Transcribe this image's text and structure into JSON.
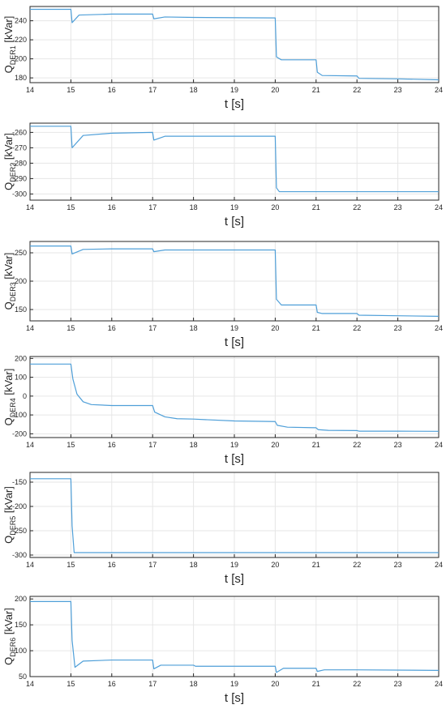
{
  "chart_data": [
    {
      "type": "line",
      "ylabel_main": "Q",
      "ylabel_sub": "DER1",
      "ylabel_unit": " [kVar]",
      "xlabel": "t [s]",
      "xlim": [
        14,
        24
      ],
      "ylim": [
        175,
        255
      ],
      "xticks": [
        14,
        15,
        16,
        17,
        18,
        19,
        20,
        21,
        22,
        23,
        24
      ],
      "yticks": [
        180,
        200,
        220,
        240
      ],
      "grid": true,
      "series": [
        {
          "color": "#4f9fd8",
          "x": [
            14,
            15,
            15.03,
            15.2,
            16,
            17,
            17.03,
            17.3,
            18,
            20,
            20.03,
            20.15,
            21,
            21.03,
            21.15,
            22,
            22.05,
            23,
            24
          ],
          "y": [
            252,
            252,
            238,
            246,
            247,
            247,
            242,
            244,
            243.5,
            243,
            202,
            199,
            199,
            186,
            182.5,
            182,
            179.5,
            179,
            178
          ]
        }
      ]
    },
    {
      "type": "line",
      "ylabel_main": "Q",
      "ylabel_sub": "DER2",
      "ylabel_unit": " [kVar]",
      "xlabel": "t [s]",
      "xlim": [
        14,
        24
      ],
      "ylim": [
        -304,
        -254
      ],
      "xticks": [
        14,
        15,
        16,
        17,
        18,
        19,
        20,
        21,
        22,
        23,
        24
      ],
      "yticks": [
        -260,
        -270,
        -280,
        -290,
        -300
      ],
      "grid": true,
      "series": [
        {
          "color": "#4f9fd8",
          "x": [
            14,
            15,
            15.03,
            15.3,
            16,
            17,
            17.03,
            17.3,
            18,
            20,
            20.03,
            20.1,
            21,
            24
          ],
          "y": [
            -256,
            -256,
            -270,
            -262,
            -260.5,
            -260,
            -265,
            -262.5,
            -262.5,
            -262.5,
            -296,
            -298.5,
            -298.5,
            -298.5
          ]
        }
      ]
    },
    {
      "type": "line",
      "ylabel_main": "Q",
      "ylabel_sub": "DER3",
      "ylabel_unit": " [kVar]",
      "xlabel": "t [s]",
      "xlim": [
        14,
        24
      ],
      "ylim": [
        130,
        270
      ],
      "xticks": [
        14,
        15,
        16,
        17,
        18,
        19,
        20,
        21,
        22,
        23,
        24
      ],
      "yticks": [
        150,
        200,
        250
      ],
      "grid": true,
      "series": [
        {
          "color": "#4f9fd8",
          "x": [
            14,
            15,
            15.03,
            15.3,
            16,
            17,
            17.03,
            17.3,
            18,
            20,
            20.03,
            20.15,
            21,
            21.03,
            21.15,
            22,
            22.05,
            23,
            24
          ],
          "y": [
            262,
            262,
            248,
            256,
            257,
            257,
            252,
            255,
            255,
            255,
            168,
            158,
            158,
            145,
            143,
            143,
            140,
            139,
            138
          ]
        }
      ]
    },
    {
      "type": "line",
      "ylabel_main": "Q",
      "ylabel_sub": "DER4",
      "ylabel_unit": " [kVar]",
      "xlabel": "t [s]",
      "xlim": [
        14,
        24
      ],
      "ylim": [
        -220,
        210
      ],
      "xticks": [
        14,
        15,
        16,
        17,
        18,
        19,
        20,
        21,
        22,
        23,
        24
      ],
      "yticks": [
        200,
        100,
        0,
        -100,
        -200
      ],
      "grid": true,
      "series": [
        {
          "color": "#4f9fd8",
          "x": [
            14,
            15,
            15.05,
            15.15,
            15.3,
            15.5,
            16,
            17,
            17.05,
            17.3,
            17.6,
            18,
            19,
            20,
            20.05,
            20.3,
            21,
            21.05,
            21.3,
            22,
            22.05,
            23,
            24
          ],
          "y": [
            170,
            170,
            90,
            10,
            -30,
            -45,
            -50,
            -50,
            -85,
            -110,
            -120,
            -122,
            -132,
            -135,
            -155,
            -165,
            -168,
            -178,
            -182,
            -183,
            -186,
            -186,
            -187
          ]
        }
      ]
    },
    {
      "type": "line",
      "ylabel_main": "Q",
      "ylabel_sub": "DER5",
      "ylabel_unit": " [kVar]",
      "xlabel": "t [s]",
      "xlim": [
        14,
        24
      ],
      "ylim": [
        -305,
        -130
      ],
      "xticks": [
        14,
        15,
        16,
        17,
        18,
        19,
        20,
        21,
        22,
        23,
        24
      ],
      "yticks": [
        -150,
        -200,
        -250,
        -300
      ],
      "grid": true,
      "series": [
        {
          "color": "#4f9fd8",
          "x": [
            14,
            15,
            15.03,
            15.08,
            16,
            24
          ],
          "y": [
            -143,
            -143,
            -240,
            -295,
            -295,
            -295
          ]
        }
      ]
    },
    {
      "type": "line",
      "ylabel_main": "Q",
      "ylabel_sub": "DER6",
      "ylabel_unit": " [kVar]",
      "xlabel": "t [s]",
      "xlim": [
        14,
        24
      ],
      "ylim": [
        50,
        205
      ],
      "xticks": [
        14,
        15,
        16,
        17,
        18,
        19,
        20,
        21,
        22,
        23,
        24
      ],
      "yticks": [
        50,
        100,
        150,
        200
      ],
      "grid": true,
      "series": [
        {
          "color": "#4f9fd8",
          "x": [
            14,
            15,
            15.03,
            15.1,
            15.3,
            16,
            17,
            17.03,
            17.2,
            18,
            18.05,
            20,
            20.03,
            20.2,
            21,
            21.03,
            21.2,
            22,
            24
          ],
          "y": [
            195,
            195,
            120,
            68,
            80,
            82,
            82,
            65,
            72,
            72,
            70,
            70,
            58,
            66,
            66,
            60,
            63,
            63,
            62
          ]
        }
      ]
    }
  ]
}
